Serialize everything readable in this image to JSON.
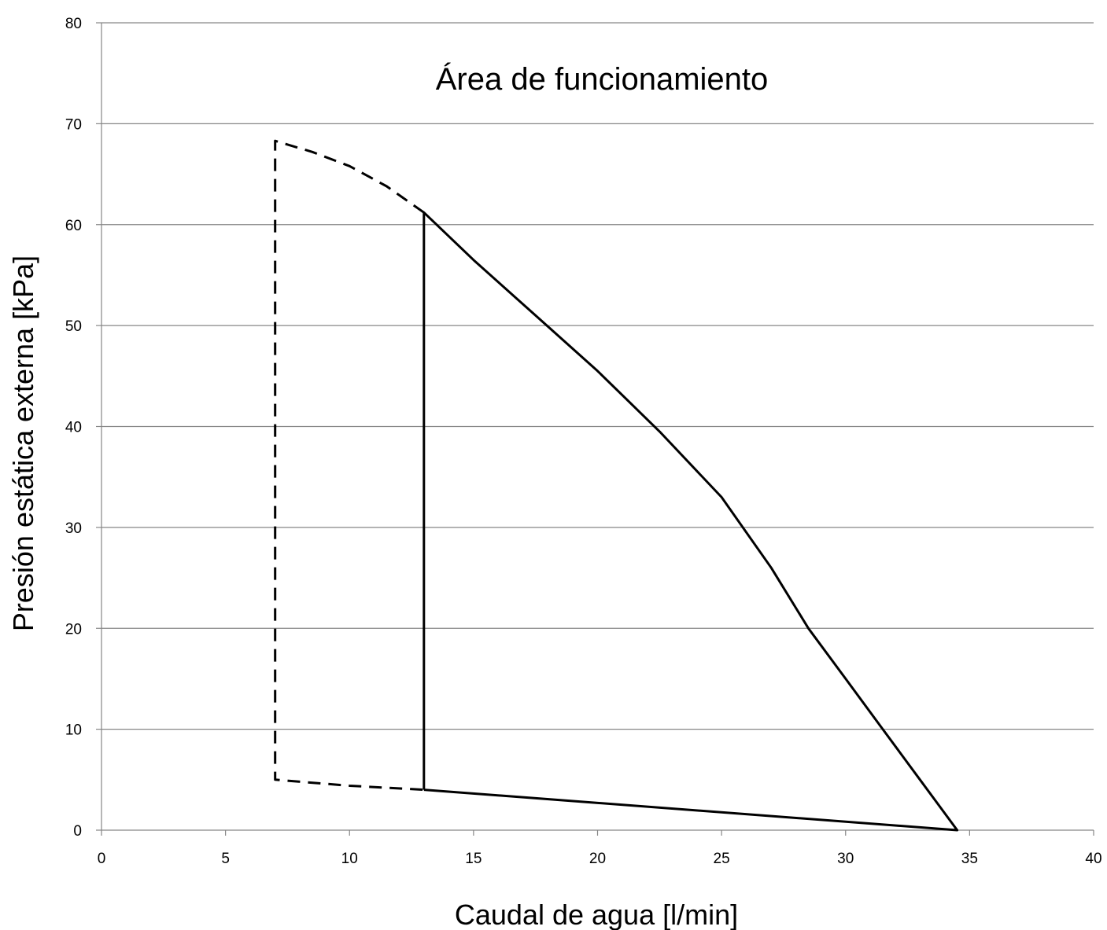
{
  "chart_data": {
    "type": "line",
    "title": "Área de funcionamiento",
    "xlabel": "Caudal de agua [l/min]",
    "ylabel": "Presión estática externa [kPa]",
    "xlim": [
      0,
      40
    ],
    "ylim": [
      0,
      80
    ],
    "x_ticks": [
      "0",
      "5",
      "10",
      "15",
      "20",
      "25",
      "30",
      "35",
      "40"
    ],
    "y_ticks": [
      "0",
      "10",
      "20",
      "30",
      "40",
      "50",
      "60",
      "70",
      "80"
    ],
    "grid": "horizontal",
    "legend": "none",
    "colors": {
      "line": "#000000",
      "grid": "#868686",
      "axis": "#868686"
    },
    "series": [
      {
        "style": "solid",
        "points": [
          [
            13,
            4
          ],
          [
            13,
            61.2
          ],
          [
            15,
            56.5
          ],
          [
            17.5,
            51
          ],
          [
            20,
            45.5
          ],
          [
            22.5,
            39.5
          ],
          [
            25,
            33
          ],
          [
            27,
            26
          ],
          [
            28.5,
            20
          ],
          [
            30,
            15
          ],
          [
            31.5,
            10
          ],
          [
            33,
            5
          ],
          [
            34.5,
            0
          ],
          [
            13,
            4
          ]
        ]
      },
      {
        "style": "dashed",
        "points": [
          [
            13,
            61.2
          ],
          [
            11.5,
            63.8
          ],
          [
            10,
            65.8
          ],
          [
            8.5,
            67.2
          ],
          [
            7,
            68.3
          ],
          [
            7,
            5
          ],
          [
            10,
            4.4
          ],
          [
            13,
            4
          ]
        ]
      }
    ]
  }
}
